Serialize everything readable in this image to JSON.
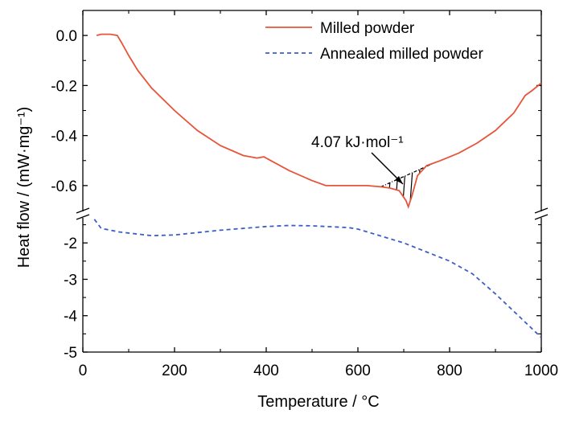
{
  "chart_data": {
    "type": "line",
    "xlabel": "Temperature / °C",
    "ylabel": "Heat flow / (mW·mg⁻¹)",
    "xlim": [
      0,
      1000
    ],
    "x_ticks": [
      "0",
      "200",
      "400",
      "600",
      "800",
      "1000"
    ],
    "axis_break": true,
    "grid": false,
    "legend": "top-right",
    "upper_panel": {
      "ylim": [
        -0.7,
        0.1
      ],
      "y_ticks": [
        "0.0",
        "-0.2",
        "-0.4",
        "-0.6"
      ]
    },
    "lower_panel": {
      "ylim": [
        -5,
        -1.2
      ],
      "y_ticks": [
        "-2",
        "-3",
        "-4",
        "-5"
      ]
    },
    "series": [
      {
        "name": "Milled powder",
        "color": "#e8543a",
        "style": "solid",
        "panel": "upper",
        "x": [
          30,
          40,
          60,
          75,
          85,
          100,
          120,
          150,
          200,
          250,
          300,
          350,
          380,
          395,
          410,
          450,
          500,
          530,
          560,
          600,
          620,
          650,
          670,
          690,
          705,
          710,
          718,
          730,
          750,
          780,
          820,
          860,
          900,
          940,
          965,
          980,
          1000
        ],
        "y": [
          0.0,
          0.005,
          0.005,
          0.0,
          -0.03,
          -0.08,
          -0.14,
          -0.21,
          -0.3,
          -0.38,
          -0.44,
          -0.48,
          -0.49,
          -0.485,
          -0.5,
          -0.54,
          -0.58,
          -0.6,
          -0.6,
          -0.6,
          -0.6,
          -0.605,
          -0.61,
          -0.62,
          -0.66,
          -0.685,
          -0.64,
          -0.56,
          -0.52,
          -0.5,
          -0.47,
          -0.43,
          -0.38,
          -0.31,
          -0.24,
          -0.22,
          -0.19
        ]
      },
      {
        "name": "Annealed milled powder",
        "color": "#3c5fc4",
        "style": "dashed",
        "panel": "lower",
        "x": [
          25,
          40,
          80,
          150,
          200,
          300,
          400,
          450,
          500,
          580,
          600,
          700,
          800,
          850,
          900,
          950,
          1000
        ],
        "y": [
          -1.35,
          -1.6,
          -1.7,
          -1.8,
          -1.78,
          -1.65,
          -1.55,
          -1.52,
          -1.53,
          -1.58,
          -1.62,
          -2.0,
          -2.5,
          -2.85,
          -3.4,
          -4.0,
          -4.6
        ]
      }
    ],
    "annotation": {
      "text": "4.07 kJ·mol⁻¹",
      "peak_x_range": [
        650,
        770
      ]
    }
  }
}
